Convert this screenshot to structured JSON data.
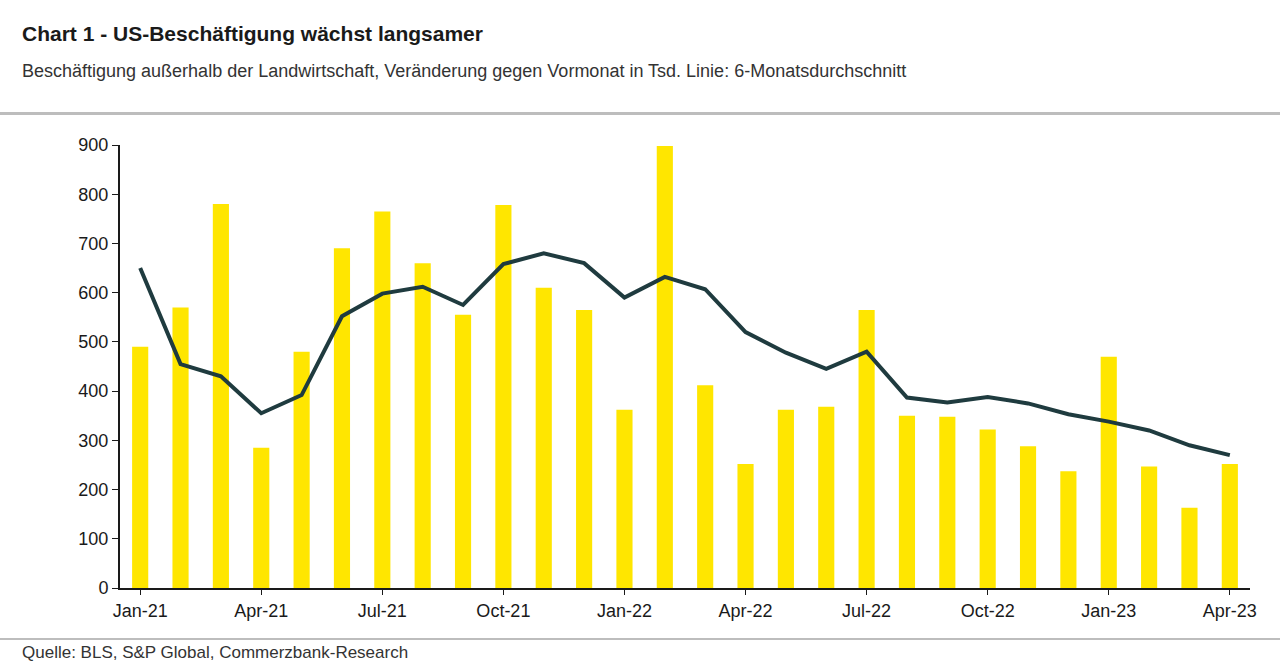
{
  "chart_data": {
    "type": "bar",
    "title": "Chart 1 - US-Beschäftigung wächst langsamer",
    "subtitle": "Beschäftigung außerhalb der Landwirtschaft, Veränderung gegen Vormonat in Tsd. Linie: 6-Monatsdurchschnitt",
    "source": "Quelle: BLS, S&P Global, Commerzbank-Research",
    "categories": [
      "Jan-21",
      null,
      null,
      "Apr-21",
      null,
      null,
      "Jul-21",
      null,
      null,
      "Oct-21",
      null,
      null,
      "Jan-22",
      null,
      null,
      "Apr-22",
      null,
      null,
      "Jul-22",
      null,
      null,
      "Oct-22",
      null,
      null,
      "Jan-23",
      null,
      null,
      "Apr-23"
    ],
    "series": [
      {
        "type": "bar",
        "color": "#ffe600",
        "values": [
          490,
          570,
          780,
          285,
          480,
          690,
          765,
          660,
          555,
          778,
          610,
          565,
          362,
          898,
          412,
          252,
          362,
          368,
          565,
          350,
          348,
          322,
          288,
          237,
          470,
          247,
          163,
          252
        ]
      },
      {
        "type": "line",
        "color": "#1f3b3f",
        "values": [
          650,
          455,
          430,
          355,
          392,
          552,
          598,
          612,
          575,
          658,
          680,
          660,
          590,
          632,
          607,
          520,
          478,
          445,
          480,
          387,
          377,
          388,
          375,
          353,
          338,
          320,
          290,
          270
        ]
      }
    ],
    "ylim": [
      0,
      900
    ],
    "yticks": [
      0,
      100,
      200,
      300,
      400,
      500,
      600,
      700,
      800,
      900
    ],
    "grid": false
  }
}
